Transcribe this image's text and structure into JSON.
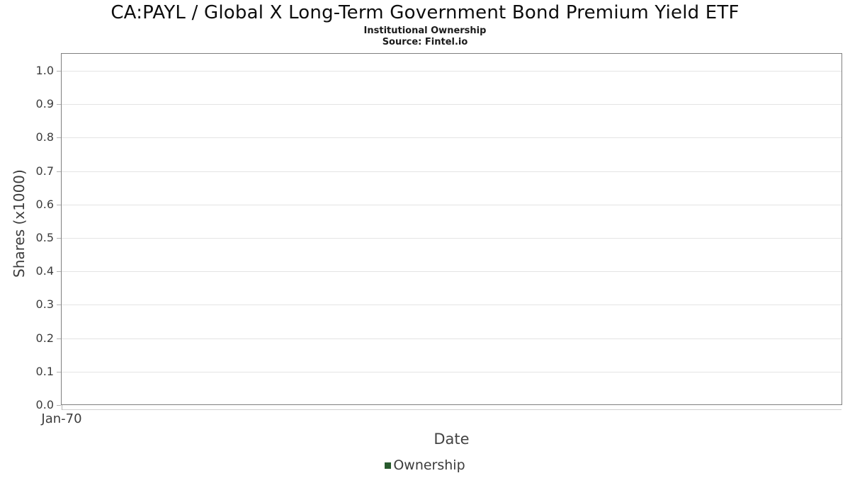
{
  "header": {
    "title": "CA:PAYL / Global X Long-Term Government Bond Premium Yield ETF",
    "subtitle": "Institutional Ownership",
    "source": "Source: Fintel.io"
  },
  "chart_data": {
    "type": "line",
    "title": "CA:PAYL / Global X Long-Term Government Bond Premium Yield ETF",
    "subtitle": "Institutional Ownership",
    "source": "Source: Fintel.io",
    "xlabel": "Date",
    "ylabel": "Shares (x1000)",
    "x_tick_labels": [
      "Jan-70"
    ],
    "y_ticks": [
      0.0,
      0.1,
      0.2,
      0.3,
      0.4,
      0.5,
      0.6,
      0.7,
      0.8,
      0.9,
      1.0
    ],
    "y_tick_labels": [
      "0.0",
      "0.1",
      "0.2",
      "0.3",
      "0.4",
      "0.5",
      "0.6",
      "0.7",
      "0.8",
      "0.9",
      "1.0"
    ],
    "ylim": [
      0,
      1.053
    ],
    "grid": "horizontal-only",
    "legend_position": "bottom",
    "series": [
      {
        "name": "Ownership",
        "color": "#285a2d",
        "x": [],
        "values": []
      }
    ]
  },
  "colors": {
    "series_green": "#285a2d",
    "gridline": "#e4e4e4",
    "plot_border": "#7f7f7f",
    "tick_mark": "#b3b3b3",
    "tick_text": "#3c3c3c",
    "title_text": "#0d0d0d",
    "background": "#ffffff"
  }
}
